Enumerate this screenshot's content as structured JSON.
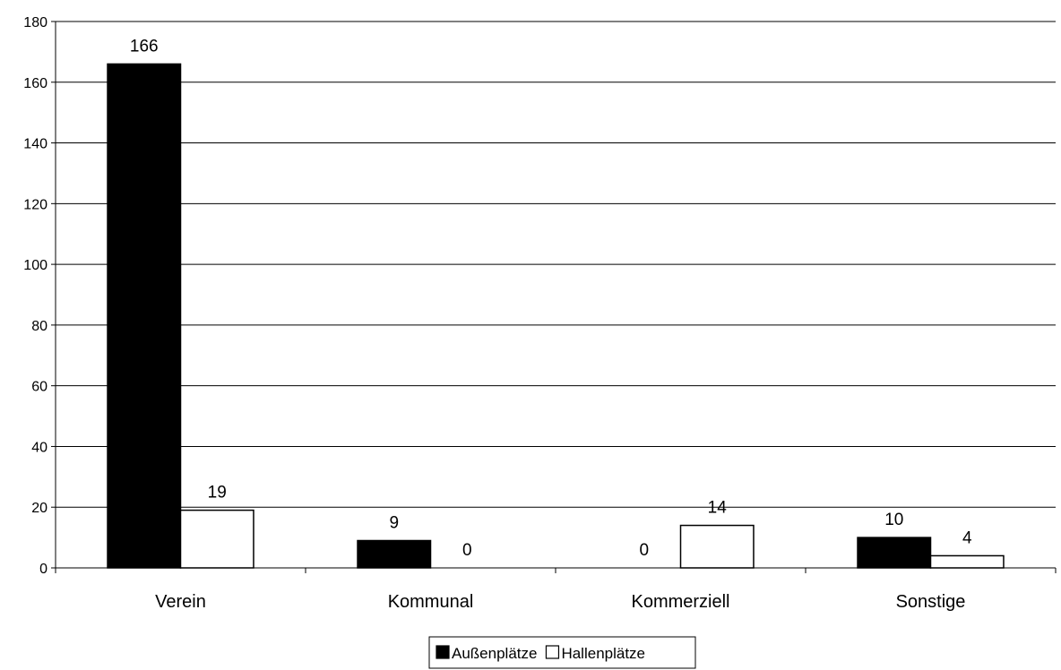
{
  "chart_data": {
    "type": "bar",
    "categories": [
      "Verein",
      "Kommunal",
      "Kommerziell",
      "Sonstige"
    ],
    "series": [
      {
        "name": "Außenplätze",
        "values": [
          166,
          9,
          0,
          10
        ],
        "color": "#000000"
      },
      {
        "name": "Hallenplätze",
        "values": [
          19,
          0,
          14,
          4
        ],
        "color": "#ffffff"
      }
    ],
    "ylim": [
      0,
      180
    ],
    "yticks": [
      "0",
      "20",
      "40",
      "60",
      "80",
      "100",
      "120",
      "140",
      "160",
      "180"
    ],
    "grid": true,
    "legend": "bottom-center",
    "title": "",
    "xlabel": "",
    "ylabel": ""
  }
}
